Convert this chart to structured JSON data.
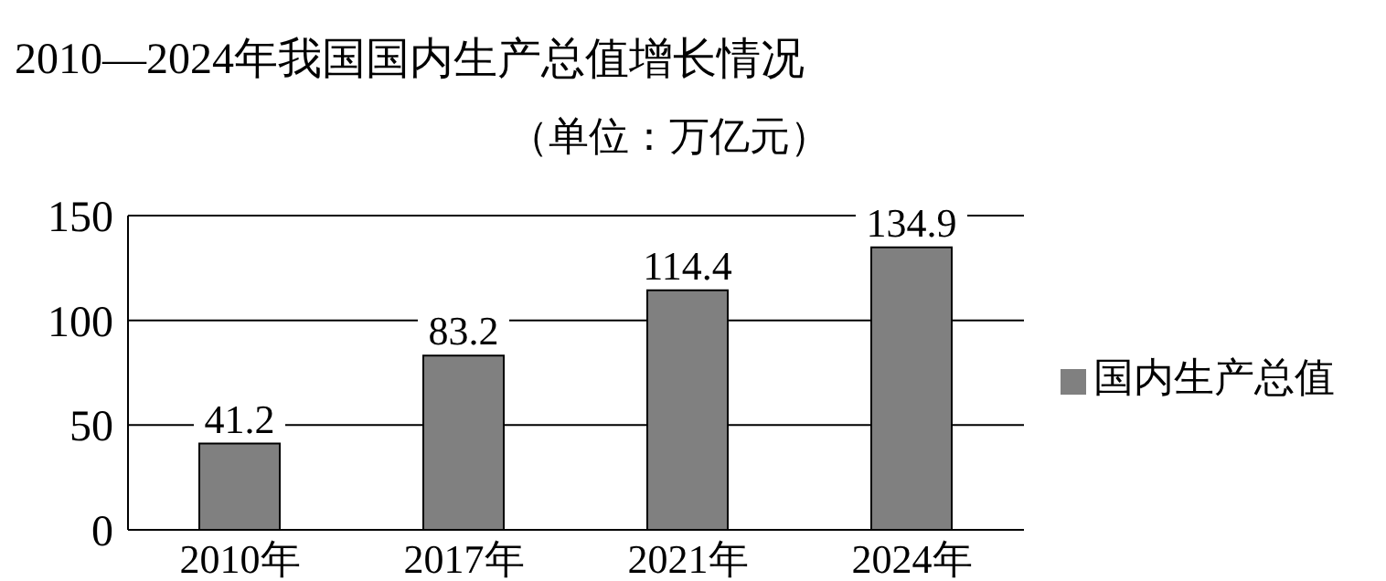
{
  "chart_data": {
    "type": "bar",
    "title": "2010—2024年我国国内生产总值增长情况",
    "subtitle": "（单位：万亿元）",
    "categories": [
      "2010年",
      "2017年",
      "2021年",
      "2024年"
    ],
    "series": [
      {
        "name": "国内生产总值",
        "color": "#808080",
        "values": [
          41.2,
          83.2,
          114.4,
          134.9
        ]
      }
    ],
    "ylim": [
      0,
      150
    ],
    "yticks": [
      0,
      50,
      100,
      150
    ],
    "grid": "y",
    "legend": "right",
    "data_labels": true
  }
}
